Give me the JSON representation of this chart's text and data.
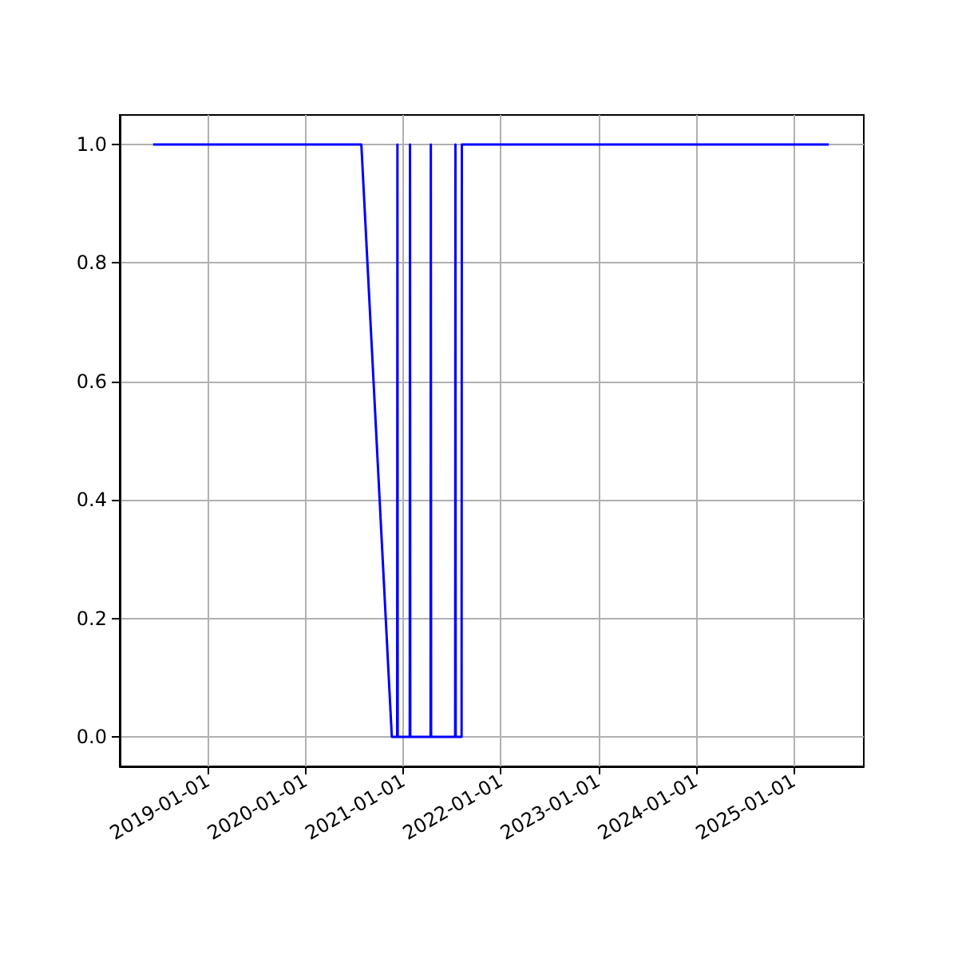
{
  "chart_data": {
    "type": "line",
    "x": [
      "2018-06-10",
      "2020-07-28",
      "2020-11-19",
      "2020-12-09",
      "2020-12-10",
      "2020-12-11",
      "2021-01-25",
      "2021-01-26",
      "2021-01-27",
      "2021-04-13",
      "2021-04-14",
      "2021-04-15",
      "2021-07-14",
      "2021-07-15",
      "2021-07-16",
      "2021-08-07",
      "2021-08-08",
      "2025-05-12"
    ],
    "series": [
      {
        "color": "#0000ff",
        "values": [
          1,
          1,
          0,
          0,
          1,
          0,
          0,
          1,
          0,
          0,
          1,
          0,
          0,
          1,
          0,
          0,
          1,
          1
        ]
      }
    ],
    "xlim": [
      "2018-02-05",
      "2025-09-20"
    ],
    "xticks": [
      "2019-01-01",
      "2020-01-01",
      "2021-01-01",
      "2022-01-01",
      "2023-01-01",
      "2024-01-01",
      "2025-01-01"
    ],
    "ylim": [
      -0.05,
      1.05
    ],
    "yticks": [
      {
        "value": 0,
        "label": "0.0"
      },
      {
        "value": 0.2,
        "label": "0.2"
      },
      {
        "value": 0.4,
        "label": "0.4"
      },
      {
        "value": 0.6,
        "label": "0.6"
      },
      {
        "value": 0.8,
        "label": "0.8"
      },
      {
        "value": 1,
        "label": "1.0"
      }
    ],
    "grid": true,
    "marker": "none",
    "line_style": "solid"
  }
}
